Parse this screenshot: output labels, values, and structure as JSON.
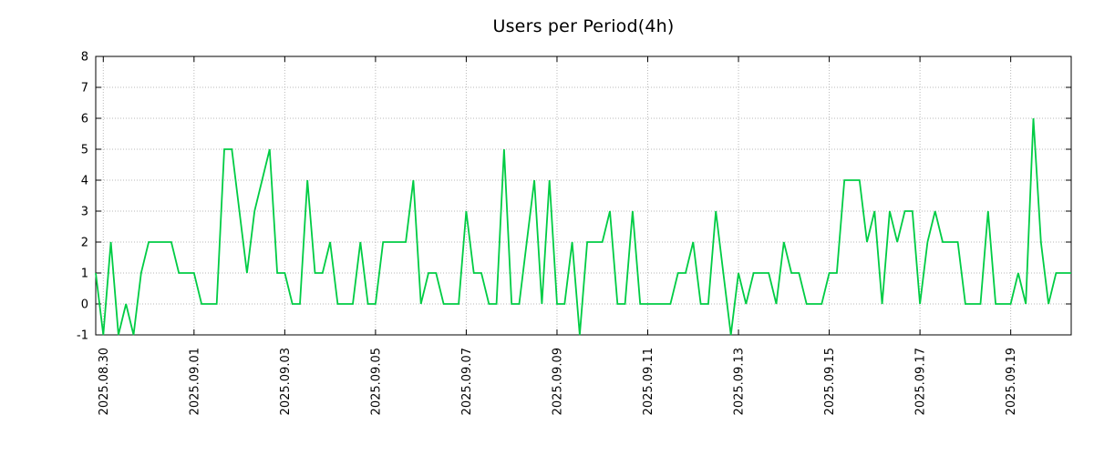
{
  "page": {
    "background_color": "#ffffff"
  },
  "chart_data": {
    "type": "line",
    "title": "Users per Period(4h)",
    "xlabel": "",
    "ylabel": "",
    "series_name": "users",
    "line_color": "#00cc44",
    "grid_color": "#b9b9b9",
    "axis_color": "#000000",
    "grid": true,
    "legend_position": "none",
    "period_hours": 4,
    "ylim": [
      -1,
      8
    ],
    "y_ticks": [
      8,
      7,
      6,
      5,
      4,
      3,
      2,
      1,
      0,
      -1
    ],
    "x_ticks": [
      {
        "label": "2025.08.30",
        "index": 1
      },
      {
        "label": "2025.09.01",
        "index": 13
      },
      {
        "label": "2025.09.03",
        "index": 25
      },
      {
        "label": "2025.09.05",
        "index": 37
      },
      {
        "label": "2025.09.07",
        "index": 49
      },
      {
        "label": "2025.09.09",
        "index": 61
      },
      {
        "label": "2025.09.11",
        "index": 73
      },
      {
        "label": "2025.09.13",
        "index": 85
      },
      {
        "label": "2025.09.15",
        "index": 97
      },
      {
        "label": "2025.09.17",
        "index": 109
      },
      {
        "label": "2025.09.19",
        "index": 121
      }
    ],
    "values": [
      1,
      -1,
      2,
      -1,
      0,
      -1,
      1,
      2,
      2,
      2,
      2,
      1,
      1,
      1,
      0,
      0,
      0,
      5,
      5,
      3,
      1,
      3,
      4,
      5,
      1,
      1,
      0,
      0,
      4,
      1,
      1,
      2,
      0,
      0,
      0,
      2,
      0,
      0,
      2,
      2,
      2,
      2,
      4,
      0,
      1,
      1,
      0,
      0,
      0,
      3,
      1,
      1,
      0,
      0,
      5,
      0,
      0,
      2,
      4,
      0,
      4,
      0,
      0,
      2,
      -1,
      2,
      2,
      2,
      3,
      0,
      0,
      3,
      0,
      0,
      0,
      0,
      0,
      1,
      1,
      2,
      0,
      0,
      3,
      1,
      -1,
      1,
      0,
      1,
      1,
      1,
      0,
      2,
      1,
      1,
      0,
      0,
      0,
      1,
      1,
      4,
      4,
      4,
      2,
      3,
      0,
      3,
      2,
      3,
      3,
      0,
      2,
      3,
      2,
      2,
      2,
      0,
      0,
      0,
      3,
      0,
      0,
      0,
      1,
      0,
      6,
      2,
      0,
      1,
      1,
      1
    ]
  }
}
